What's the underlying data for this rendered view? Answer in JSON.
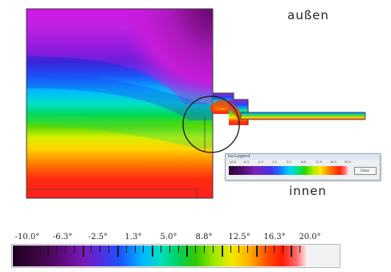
{
  "labels": {
    "outside": "außen",
    "inside": "innen"
  },
  "legend_window": {
    "title": "Iso-Legend",
    "ticks": [
      "-10.0",
      "-6.3",
      "-2.5",
      "1.3",
      "5.0",
      "8.8",
      "12.5",
      "16.3",
      "20.0"
    ],
    "button_label": "Close"
  },
  "scale": {
    "tick_labels": [
      "-10.0°",
      "-6.3°",
      "-2.5°",
      "1.3°",
      "5.0°",
      "8.8°",
      "12.5°",
      "16.3°",
      "20.0°"
    ],
    "min": -10.0,
    "max": 20.0,
    "unit": "°"
  },
  "colors": {
    "cold": "#2a002e",
    "mid": "#00e0a0",
    "warm": "#ff1a00",
    "hot": "#ffffff",
    "structure_outline": "#3a3a3a",
    "highlight_circle": "#222222"
  }
}
